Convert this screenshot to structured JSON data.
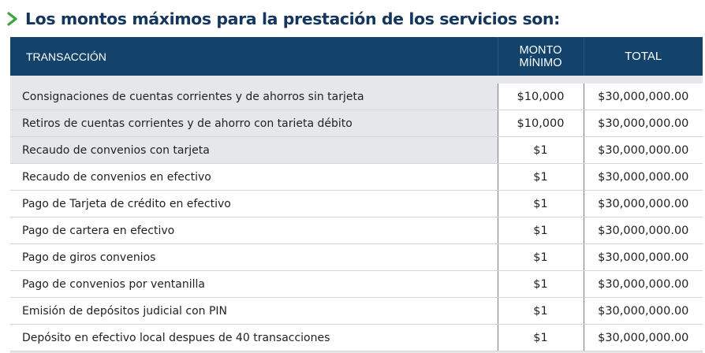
{
  "heading": {
    "text": "Los montos máximos para la prestación de los servicios son:",
    "icon": "chevron-right-icon",
    "icon_color": "#3aa63a",
    "text_color": "#14365e"
  },
  "table": {
    "header_color": "#13436b",
    "headers": {
      "transaccion": "TRANSACCIÓN",
      "monto_line1": "MONTO",
      "monto_line2": "MÍNIMO",
      "total": "TOTAL"
    },
    "rows": [
      {
        "transaccion": "Consignaciones de cuentas corrientes y de ahorros sin tarjeta",
        "monto": "$10,000",
        "total": "$30,000,000.00"
      },
      {
        "transaccion": "Retiros de cuentas corrientes y de ahorro con tarieta débito",
        "monto": "$10,000",
        "total": "$30,000,000.00"
      },
      {
        "transaccion": "Recaudo de convenios con tarjeta",
        "monto": "$1",
        "total": "$30,000,000.00"
      },
      {
        "transaccion": "Recaudo de convenios en efectivo",
        "monto": "$1",
        "total": "$30,000,000.00"
      },
      {
        "transaccion": "Pago de Tarjeta de crédito en efectivo",
        "monto": "$1",
        "total": "$30,000,000.00"
      },
      {
        "transaccion": "Pago de cartera en efectivo",
        "monto": "$1",
        "total": "$30,000,000.00"
      },
      {
        "transaccion": "Pago de giros convenios",
        "monto": "$1",
        "total": "$30,000,000.00"
      },
      {
        "transaccion": "Pago de convenios por ventanilla",
        "monto": "$1",
        "total": "$30,000,000.00"
      },
      {
        "transaccion": "Emisión de depósitos judicial con PIN",
        "monto": "$1",
        "total": "$30,000,000.00"
      },
      {
        "transaccion": "Depósito en efectivo local despues de 40 transacciones",
        "monto": "$1",
        "total": "$30,000,000.00"
      }
    ]
  }
}
